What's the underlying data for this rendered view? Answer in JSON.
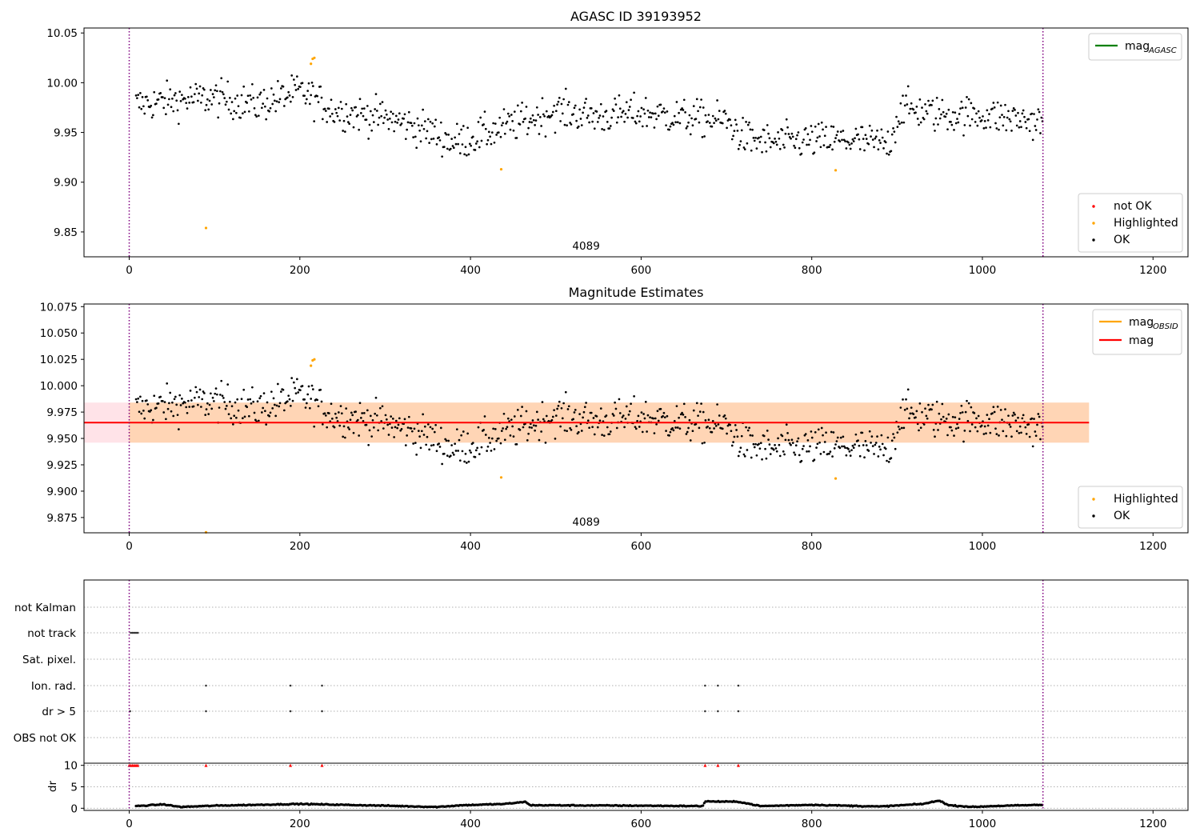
{
  "chart_data": [
    {
      "type": "scatter",
      "title": "AGASC ID 39193952",
      "xlim": [
        -53,
        1241
      ],
      "ylim": [
        9.825,
        10.055
      ],
      "x_ticks": [
        "0",
        "200",
        "400",
        "600",
        "800",
        "1000",
        "1200"
      ],
      "y_ticks": [
        "9.85",
        "9.90",
        "9.95",
        "10.00",
        "10.05"
      ],
      "y_tick_values": [
        9.85,
        9.9,
        9.95,
        10.0,
        10.05
      ],
      "obs_boundaries": [
        0,
        1071
      ],
      "obs_label": "4089",
      "legend_top": [
        {
          "label": "mag",
          "sub": "AGASC",
          "color": "#008000"
        }
      ],
      "legend_bottom": [
        {
          "label": "not OK",
          "color": "#ff0000"
        },
        {
          "label": "Highlighted",
          "color": "#ffa500"
        },
        {
          "label": "OK",
          "color": "#000000"
        }
      ],
      "highlighted_points": [
        [
          90,
          9.854
        ],
        [
          213,
          10.019
        ],
        [
          215,
          10.024
        ],
        [
          217,
          10.025
        ],
        [
          436,
          9.913
        ],
        [
          828,
          9.912
        ]
      ],
      "ok_trend": [
        [
          8,
          9.978
        ],
        [
          50,
          9.982
        ],
        [
          100,
          9.985
        ],
        [
          150,
          9.978
        ],
        [
          200,
          9.991
        ],
        [
          215,
          9.985
        ],
        [
          240,
          9.972
        ],
        [
          300,
          9.965
        ],
        [
          350,
          9.952
        ],
        [
          380,
          9.94
        ],
        [
          400,
          9.944
        ],
        [
          450,
          9.958
        ],
        [
          500,
          9.972
        ],
        [
          550,
          9.966
        ],
        [
          600,
          9.97
        ],
        [
          650,
          9.965
        ],
        [
          700,
          9.962
        ],
        [
          720,
          9.945
        ],
        [
          750,
          9.94
        ],
        [
          800,
          9.942
        ],
        [
          850,
          9.942
        ],
        [
          890,
          9.938
        ],
        [
          905,
          9.975
        ],
        [
          950,
          9.968
        ],
        [
          1000,
          9.968
        ],
        [
          1071,
          9.96
        ]
      ],
      "ok_scatter": 0.013
    },
    {
      "type": "scatter",
      "title": "Magnitude Estimates",
      "xlim": [
        -53,
        1241
      ],
      "ylim": [
        9.8605,
        10.0775
      ],
      "x_ticks": [
        "0",
        "200",
        "400",
        "600",
        "800",
        "1000",
        "1200"
      ],
      "y_ticks": [
        "9.875",
        "9.900",
        "9.925",
        "9.950",
        "9.975",
        "10.000",
        "10.025",
        "10.050",
        "10.075"
      ],
      "y_tick_values": [
        9.875,
        9.9,
        9.925,
        9.95,
        9.975,
        10.0,
        10.025,
        10.05,
        10.075
      ],
      "obs_boundaries": [
        0,
        1071
      ],
      "obs_label": "4089",
      "mag": 9.965,
      "mag_band": [
        9.946,
        9.984
      ],
      "mag_band_x": [
        -53,
        1125
      ],
      "mag_obsid_band_x": [
        0,
        1125
      ],
      "legend_top": [
        {
          "label": "mag",
          "sub": "OBSID",
          "color": "#ffa500"
        },
        {
          "label": "mag",
          "sub": "",
          "color": "#ff0000"
        }
      ],
      "legend_bottom": [
        {
          "label": "Highlighted",
          "color": "#ffa500"
        },
        {
          "label": "OK",
          "color": "#000000"
        }
      ],
      "highlighted_points": [
        [
          90,
          9.861
        ],
        [
          213,
          10.019
        ],
        [
          215,
          10.024
        ],
        [
          217,
          10.025
        ],
        [
          436,
          9.913
        ],
        [
          828,
          9.912
        ]
      ]
    },
    {
      "type": "scatter",
      "title": "",
      "xlim": [
        -53,
        1241
      ],
      "x_ticks": [
        "0",
        "200",
        "400",
        "600",
        "800",
        "1000",
        "1200"
      ],
      "obs_boundaries": [
        0,
        1071
      ],
      "flag_rows": [
        "not Kalman",
        "not track",
        "Sat. pixel.",
        "Ion. rad.",
        "dr > 5",
        "OBS not OK"
      ],
      "flag_points": {
        "not track": [
          2,
          4,
          6,
          8,
          10
        ],
        "Ion. rad.": [
          90,
          189,
          226,
          675,
          690,
          714
        ],
        "dr > 5": [
          1,
          90,
          189,
          226,
          675,
          690,
          714
        ]
      },
      "dr_ylabel": "dr",
      "dr_ticks": [
        "0",
        "5",
        "10"
      ],
      "dr_ylim": [
        -0.5,
        10.5
      ],
      "dr_spikes": [
        0,
        2,
        4,
        6,
        8,
        10,
        90,
        189,
        226,
        675,
        690,
        714
      ],
      "dr_trend": [
        [
          8,
          0.5
        ],
        [
          40,
          0.9
        ],
        [
          60,
          0.3
        ],
        [
          100,
          0.6
        ],
        [
          200,
          1.0
        ],
        [
          300,
          0.6
        ],
        [
          360,
          0.3
        ],
        [
          390,
          0.7
        ],
        [
          440,
          1.0
        ],
        [
          465,
          1.5
        ],
        [
          470,
          0.7
        ],
        [
          600,
          0.6
        ],
        [
          672,
          0.5
        ],
        [
          675,
          1.6
        ],
        [
          715,
          1.5
        ],
        [
          740,
          0.5
        ],
        [
          800,
          0.8
        ],
        [
          880,
          0.4
        ],
        [
          930,
          1.0
        ],
        [
          950,
          1.8
        ],
        [
          960,
          0.7
        ],
        [
          990,
          0.3
        ],
        [
          1010,
          0.5
        ],
        [
          1071,
          0.8
        ]
      ]
    }
  ]
}
